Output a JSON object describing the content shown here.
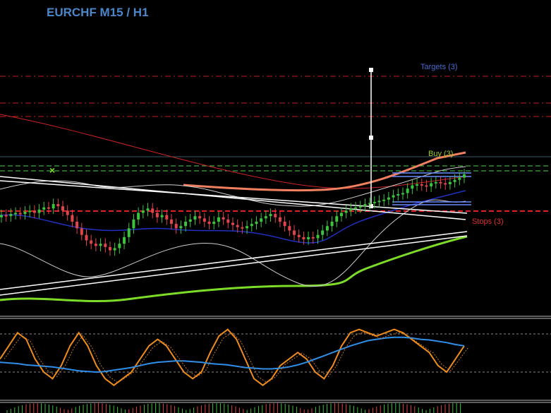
{
  "chart_data": {
    "type": "line",
    "title": "EURCHF M15 / H1",
    "level_labels": {
      "targets": "Targets (3)",
      "buy": "Buy (3)",
      "stops": "Stops (3)"
    },
    "colors": {
      "background": "#000000",
      "candle_up": "#3cc43c",
      "candle_down": "#e0444c",
      "title": "#4a86c8",
      "targets_text": "#4a6ad0",
      "buy_text": "#9acd32",
      "stops_text": "#e03030",
      "ma_red": "#cc2222",
      "ma_salmon": "#f08060",
      "ma_green": "#7cdc28",
      "ma_blue": "#2030c0",
      "osc_blue": "#2f8fe8",
      "osc_orange": "#f08c1c"
    },
    "price_series": {
      "name": "EURCHF",
      "close": [
        0.56,
        0.55,
        0.57,
        0.58,
        0.57,
        0.59,
        0.6,
        0.58,
        0.61,
        0.63,
        0.62,
        0.66,
        0.64,
        0.6,
        0.56,
        0.5,
        0.44,
        0.38,
        0.33,
        0.3,
        0.28,
        0.3,
        0.27,
        0.24,
        0.26,
        0.3,
        0.36,
        0.44,
        0.52,
        0.58,
        0.6,
        0.62,
        0.58,
        0.54,
        0.56,
        0.52,
        0.48,
        0.44,
        0.46,
        0.5,
        0.52,
        0.55,
        0.53,
        0.5,
        0.48,
        0.5,
        0.54,
        0.52,
        0.49,
        0.47,
        0.45,
        0.44,
        0.46,
        0.48,
        0.5,
        0.53,
        0.55,
        0.57,
        0.54,
        0.5,
        0.46,
        0.42,
        0.38,
        0.36,
        0.34,
        0.36,
        0.35,
        0.38,
        0.42,
        0.46,
        0.5,
        0.55,
        0.58,
        0.6,
        0.62,
        0.63,
        0.64,
        0.66,
        0.67,
        0.68,
        0.69,
        0.7,
        0.72,
        0.74,
        0.75,
        0.76,
        0.8,
        0.83,
        0.84,
        0.83,
        0.82,
        0.85,
        0.86,
        0.85,
        0.84,
        0.86,
        0.88,
        0.9,
        0.93
      ]
    },
    "oscillator": {
      "fast": [
        0.5,
        0.7,
        0.9,
        0.8,
        0.5,
        0.3,
        0.2,
        0.4,
        0.7,
        0.9,
        0.7,
        0.4,
        0.2,
        0.1,
        0.2,
        0.3,
        0.5,
        0.7,
        0.8,
        0.7,
        0.5,
        0.3,
        0.2,
        0.3,
        0.6,
        0.85,
        0.95,
        0.8,
        0.5,
        0.2,
        0.1,
        0.2,
        0.4,
        0.5,
        0.6,
        0.5,
        0.3,
        0.2,
        0.4,
        0.7,
        0.9,
        0.95,
        0.9,
        0.85,
        0.9,
        0.95,
        0.9,
        0.8,
        0.7,
        0.6,
        0.4,
        0.3,
        0.5,
        0.7
      ],
      "slow": [
        0.45,
        0.44,
        0.43,
        0.41,
        0.4,
        0.39,
        0.38,
        0.36,
        0.34,
        0.32,
        0.31,
        0.3,
        0.31,
        0.33,
        0.35,
        0.37,
        0.4,
        0.43,
        0.45,
        0.46,
        0.47,
        0.47,
        0.46,
        0.45,
        0.43,
        0.42,
        0.41,
        0.39,
        0.37,
        0.36,
        0.35,
        0.35,
        0.36,
        0.38,
        0.41,
        0.45,
        0.5,
        0.55,
        0.6,
        0.65,
        0.7,
        0.74,
        0.78,
        0.8,
        0.82,
        0.83,
        0.83,
        0.82,
        0.8,
        0.79,
        0.77,
        0.75,
        0.72,
        0.7
      ]
    }
  }
}
